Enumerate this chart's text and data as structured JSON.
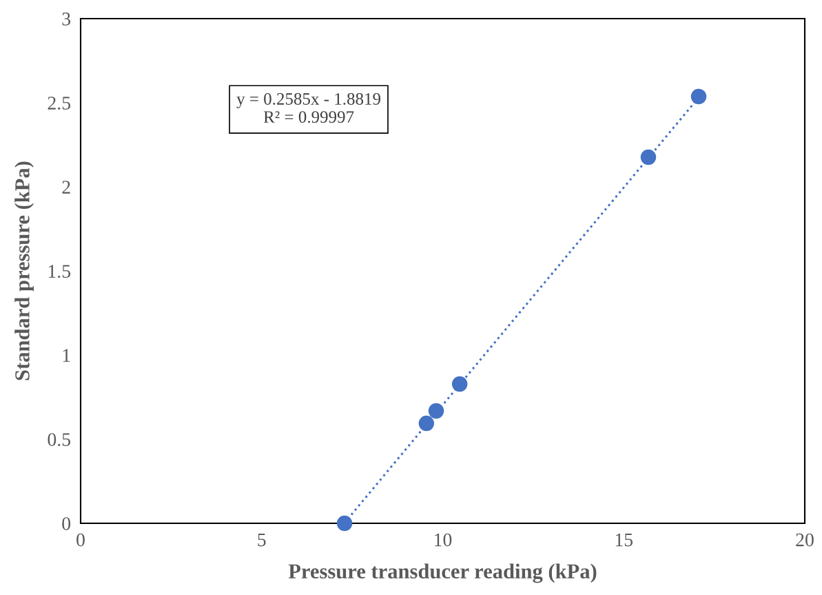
{
  "chart_data": {
    "type": "scatter",
    "xlabel": "Pressure transducer reading (kPa)",
    "ylabel": "Standard pressure (kPa)",
    "xlim": [
      0,
      20
    ],
    "xticks": [
      0,
      5,
      10,
      15,
      20
    ],
    "ylim": [
      0,
      3
    ],
    "yticks": [
      0,
      0.5,
      1,
      1.5,
      2,
      2.5,
      3
    ],
    "series": [
      {
        "type": "line",
        "color": "#4472c4",
        "line_style": "dotted",
        "marker": "none",
        "x": [
          7.28,
          17.07
        ],
        "values": [
          0,
          2.531
        ]
      },
      {
        "color": "#4472c4",
        "marker": "circle",
        "x": [
          7.29,
          9.55,
          9.82,
          10.47,
          15.68,
          17.07
        ],
        "values": [
          0,
          0.594,
          0.668,
          0.828,
          2.176,
          2.537
        ]
      }
    ],
    "annotations": [
      "y = 0.2585x - 1.8819\nR² = 0.99997"
    ],
    "grid": false,
    "legend": false
  }
}
